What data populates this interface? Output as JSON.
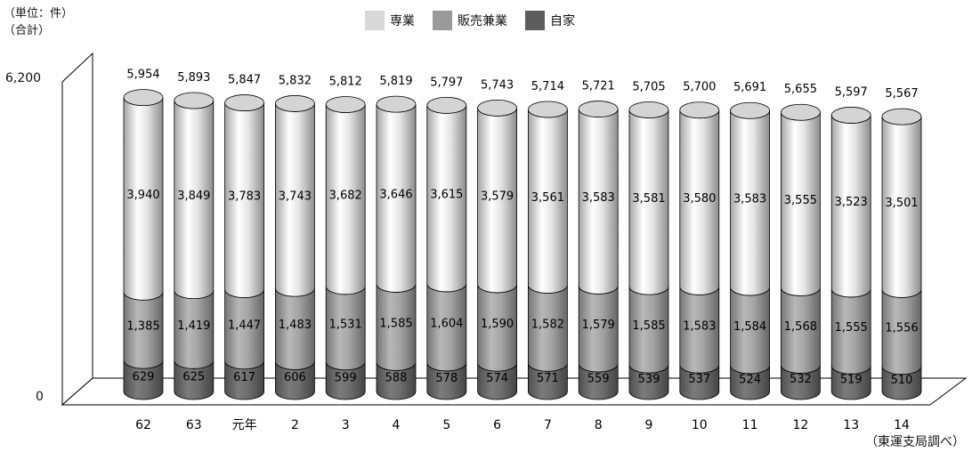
{
  "unit_label": "（単位：件）",
  "total_label": "（合計）",
  "source": "（東運支局調べ）",
  "chart_data": {
    "type": "bar",
    "stacked": true,
    "style": "3d-cylinder",
    "categories": [
      "62",
      "63",
      "元年",
      "2",
      "3",
      "4",
      "5",
      "6",
      "7",
      "8",
      "9",
      "10",
      "11",
      "12",
      "13",
      "14"
    ],
    "series": [
      {
        "name": "自家",
        "color": "#6e6e6e",
        "values": [
          629,
          625,
          617,
          606,
          599,
          588,
          578,
          574,
          571,
          559,
          539,
          537,
          524,
          532,
          519,
          510
        ]
      },
      {
        "name": "販売兼業",
        "color": "#a4a4a4",
        "values": [
          1385,
          1419,
          1447,
          1483,
          1531,
          1585,
          1604,
          1590,
          1582,
          1579,
          1585,
          1583,
          1584,
          1568,
          1555,
          1556
        ]
      },
      {
        "name": "専業",
        "color": "#e4e4e4",
        "values": [
          3940,
          3849,
          3783,
          3743,
          3682,
          3646,
          3615,
          3579,
          3561,
          3583,
          3581,
          3580,
          3583,
          3555,
          3523,
          3501
        ]
      }
    ],
    "totals": [
      "5,954",
      "5,893",
      "5,847",
      "5,832",
      "5,812",
      "5,819",
      "5,797",
      "5,743",
      "5,714",
      "5,721",
      "5,705",
      "5,700",
      "5,691",
      "5,655",
      "5,597",
      "5,567"
    ],
    "ytick_labels": [
      "0",
      "6,200"
    ],
    "ylim": [
      0,
      6200
    ],
    "legend_position": "top",
    "grid": false
  }
}
